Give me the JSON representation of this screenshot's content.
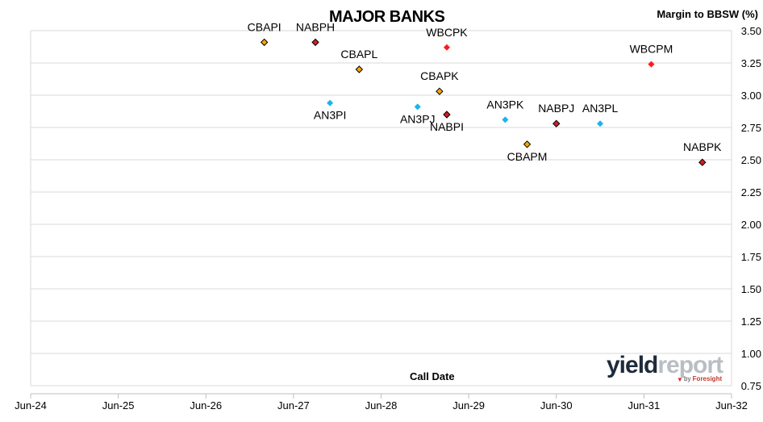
{
  "title": "MAJOR BANKS",
  "logo": {
    "part1": "yield",
    "part2": "report",
    "byline_prefix": "by ",
    "byline_brand": "Foresight"
  },
  "colors": {
    "CBA": "#f5a900",
    "NAB": "#d21f25",
    "WBC": "#ff1a1a",
    "ANZ": "#19b4ee",
    "grid": "#d9d9d9"
  },
  "chart_data": {
    "type": "scatter",
    "xlabel": "Call Date",
    "ylabel": "Margin to BBSW (%)",
    "ylim": [
      0.75,
      3.5
    ],
    "y_ticks": [
      "0.75",
      "1.00",
      "1.25",
      "1.50",
      "1.75",
      "2.00",
      "2.25",
      "2.50",
      "2.75",
      "3.00",
      "3.25",
      "3.50"
    ],
    "x_ticks": [
      "Jun-24",
      "Jun-25",
      "Jun-26",
      "Jun-27",
      "Jun-28",
      "Jun-29",
      "Jun-30",
      "Jun-31",
      "Jun-32"
    ],
    "xlim": [
      "2024-06",
      "2032-06"
    ],
    "grid": true,
    "points": [
      {
        "label": "CBAPI",
        "date": "2027-02",
        "y": 3.41,
        "issuer": "CBA",
        "label_pos": "above"
      },
      {
        "label": "NABPH",
        "date": "2027-09",
        "y": 3.41,
        "issuer": "NAB",
        "label_pos": "above"
      },
      {
        "label": "CBAPL",
        "date": "2028-03",
        "y": 3.2,
        "issuer": "CBA",
        "label_pos": "above"
      },
      {
        "label": "AN3PI",
        "date": "2027-11",
        "y": 2.94,
        "issuer": "ANZ",
        "label_pos": "below"
      },
      {
        "label": "WBCPK",
        "date": "2029-03",
        "y": 3.37,
        "issuer": "WBC",
        "label_pos": "above"
      },
      {
        "label": "CBAPK",
        "date": "2029-02",
        "y": 3.03,
        "issuer": "CBA",
        "label_pos": "above"
      },
      {
        "label": "AN3PJ",
        "date": "2028-11",
        "y": 2.91,
        "issuer": "ANZ",
        "label_pos": "below"
      },
      {
        "label": "NABPI",
        "date": "2029-03",
        "y": 2.85,
        "issuer": "NAB",
        "label_pos": "below"
      },
      {
        "label": "AN3PK",
        "date": "2029-11",
        "y": 2.81,
        "issuer": "ANZ",
        "label_pos": "above"
      },
      {
        "label": "CBAPM",
        "date": "2030-02",
        "y": 2.62,
        "issuer": "CBA",
        "label_pos": "below"
      },
      {
        "label": "NABPJ",
        "date": "2030-06",
        "y": 2.78,
        "issuer": "NAB",
        "label_pos": "above"
      },
      {
        "label": "AN3PL",
        "date": "2030-12",
        "y": 2.78,
        "issuer": "ANZ",
        "label_pos": "above"
      },
      {
        "label": "WBCPM",
        "date": "2031-07",
        "y": 3.24,
        "issuer": "WBC",
        "label_pos": "above"
      },
      {
        "label": "NABPK",
        "date": "2032-02",
        "y": 2.48,
        "issuer": "NAB",
        "label_pos": "above"
      }
    ]
  }
}
